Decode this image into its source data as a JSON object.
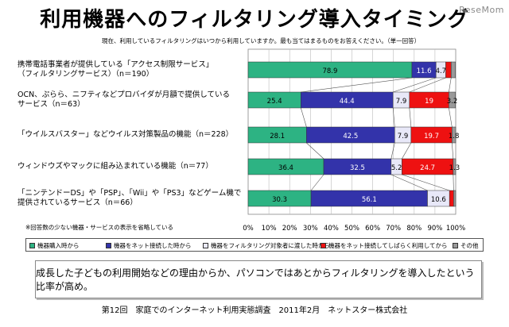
{
  "header": {
    "title": "利用機器へのフィルタリング導入タイミング",
    "watermark": "ReseMom",
    "question": "現在、利用しているフィルタリングはいつから利用していますか。最も当てはまるものをお答えください。（単一回答）"
  },
  "chart_data": {
    "type": "bar",
    "orientation": "horizontal",
    "stacked": "percent",
    "categories": [
      "携帯電話事業者が提供している「アクセス制限サービス」\n（フィルタリングサービス）（n＝190）",
      "OCN、ぷらら、ニフティなどプロバイダが月額で提供している\nサービス（n＝63）",
      "「ウイルスバスター」などウイルス対策製品の機能（n＝228）",
      "ウィンドウズやマックに組み込まれている機能（n＝77）",
      "「ニンテンドーDS」や「PSP」、「Wii」や「PS3」などゲーム機で\n提供されているサービス（n＝66）"
    ],
    "series": [
      {
        "name": "機器購入時から",
        "color": "#2db383",
        "values": [
          78.9,
          25.4,
          28.1,
          36.4,
          30.3
        ]
      },
      {
        "name": "機器をネット接続した時から",
        "color": "#3333aa",
        "values": [
          11.6,
          44.4,
          42.5,
          32.5,
          56.1
        ]
      },
      {
        "name": "機器をフィルタリング対象者に渡した時から",
        "color": "#e8e8f8",
        "values": [
          4.7,
          7.9,
          7.9,
          5.2,
          10.6
        ]
      },
      {
        "name": "機器をネット接続してしばらく利用してから",
        "color": "#ee1111",
        "values": [
          2.6,
          19.0,
          19.7,
          24.7,
          2.0
        ]
      },
      {
        "name": "その他",
        "color": "#999999",
        "values": [
          2.1,
          3.2,
          1.8,
          1.3,
          1.0
        ]
      }
    ],
    "data_labels": [
      [
        "78.9",
        "11.6",
        "4.7",
        "",
        ""
      ],
      [
        "25.4",
        "44.4",
        "7.9",
        "19",
        "3.2"
      ],
      [
        "28.1",
        "42.5",
        "7.9",
        "19.7",
        "1.8"
      ],
      [
        "36.4",
        "32.5",
        "5.2",
        "24.7",
        "1.3"
      ],
      [
        "30.3",
        "56.1",
        "10.6",
        "",
        ""
      ]
    ],
    "x_ticks": [
      "0%",
      "10%",
      "20%",
      "30%",
      "40%",
      "50%",
      "60%",
      "70%",
      "80%",
      "90%",
      "100%"
    ],
    "xlim": [
      0,
      100
    ],
    "grid": true,
    "legend_position": "bottom"
  },
  "note": "※回答数の少ない機器・サービスの表示を省略している",
  "comment": "成長した子どもの利用開始などの理由からか、パソコンではあとからフィルタリングを導入したという比率が高め。",
  "source": "第12回　家庭でのインターネット利用実態調査　2011年2月　ネットスター株式会社"
}
